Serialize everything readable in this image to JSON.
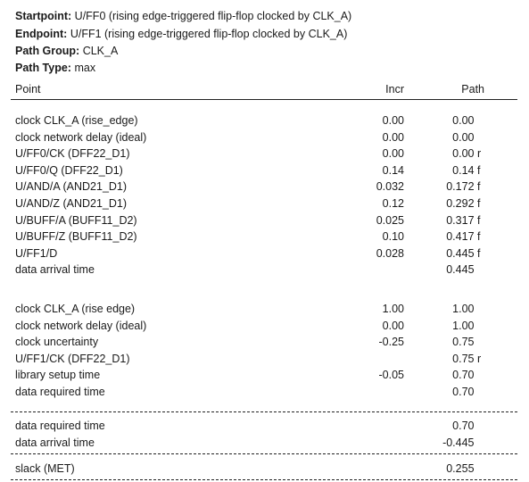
{
  "header": {
    "startpoint_key": "Startpoint:",
    "startpoint_val": "U/FF0 (rising edge-triggered flip-flop clocked by CLK_A)",
    "endpoint_key": "Endpoint:",
    "endpoint_val": "U/FF1 (rising edge-triggered flip-flop clocked by CLK_A)",
    "path_group_key": "Path Group:",
    "path_group_val": "CLK_A",
    "path_type_key": "Path Type:",
    "path_type_val": "max"
  },
  "columns": {
    "point": "Point",
    "incr": "Incr",
    "path": "Path"
  },
  "arrival": [
    {
      "point": "clock CLK_A (rise_edge)",
      "incr": "0.00",
      "path": "0.00",
      "sfx": ""
    },
    {
      "point": "clock network delay (ideal)",
      "incr": "0.00",
      "path": "0.00",
      "sfx": ""
    },
    {
      "point": "U/FF0/CK (DFF22_D1)",
      "incr": "0.00",
      "path": "0.00",
      "sfx": "r"
    },
    {
      "point": "U/FF0/Q (DFF22_D1)",
      "incr": "0.14",
      "path": "0.14",
      "sfx": "f"
    },
    {
      "point": "U/AND/A (AND21_D1)",
      "incr": "0.032",
      "path": "0.172",
      "sfx": "f"
    },
    {
      "point": "U/AND/Z (AND21_D1)",
      "incr": "0.12",
      "path": "0.292",
      "sfx": "f"
    },
    {
      "point": "U/BUFF/A (BUFF11_D2)",
      "incr": "0.025",
      "path": "0.317",
      "sfx": "f"
    },
    {
      "point": "U/BUFF/Z (BUFF11_D2)",
      "incr": "0.10",
      "path": "0.417",
      "sfx": "f"
    },
    {
      "point": "U/FF1/D",
      "incr": "0.028",
      "path": "0.445",
      "sfx": "f"
    },
    {
      "point": "data arrival time",
      "incr": "",
      "path": "0.445",
      "sfx": ""
    }
  ],
  "required": [
    {
      "point": "clock CLK_A (rise edge)",
      "incr": "1.00",
      "path": "1.00",
      "sfx": ""
    },
    {
      "point": "clock network delay (ideal)",
      "incr": "0.00",
      "path": "1.00",
      "sfx": ""
    },
    {
      "point": "clock uncertainty",
      "incr": "-0.25",
      "path": "0.75",
      "sfx": ""
    },
    {
      "point": "U/FF1/CK (DFF22_D1)",
      "incr": "",
      "path": "0.75",
      "sfx": "r"
    },
    {
      "point": "library setup time",
      "incr": "-0.05",
      "path": "0.70",
      "sfx": ""
    },
    {
      "point": "data required time",
      "incr": "",
      "path": "0.70",
      "sfx": ""
    }
  ],
  "summary": [
    {
      "point": "data required time",
      "incr": "",
      "path": "0.70",
      "sfx": ""
    },
    {
      "point": "data arrival time",
      "incr": "",
      "path": "-0.445",
      "sfx": ""
    }
  ],
  "slack": {
    "point": "slack (MET)",
    "incr": "",
    "path": "0.255",
    "sfx": ""
  }
}
